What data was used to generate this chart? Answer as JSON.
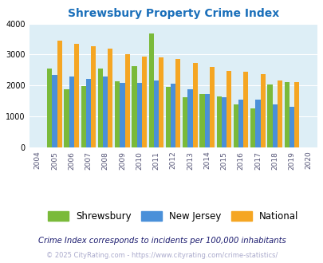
{
  "title": "Shrewsbury Property Crime Index",
  "years": [
    2004,
    2005,
    2006,
    2007,
    2008,
    2009,
    2010,
    2011,
    2012,
    2013,
    2014,
    2015,
    2016,
    2017,
    2018,
    2019,
    2020
  ],
  "shrewsbury": [
    null,
    2540,
    1880,
    1970,
    2540,
    2140,
    2630,
    3670,
    1950,
    1620,
    1720,
    1650,
    1400,
    1260,
    2030,
    2120,
    null
  ],
  "new_jersey": [
    null,
    2340,
    2280,
    2200,
    2290,
    2080,
    2080,
    2150,
    2060,
    1890,
    1710,
    1620,
    1540,
    1540,
    1400,
    1320,
    null
  ],
  "national": [
    null,
    3440,
    3340,
    3270,
    3200,
    3020,
    2940,
    2900,
    2850,
    2730,
    2590,
    2480,
    2440,
    2360,
    2170,
    2100,
    null
  ],
  "shrewsbury_color": "#7aba3a",
  "new_jersey_color": "#4a90d9",
  "national_color": "#f5a623",
  "plot_bg": "#ddeef6",
  "ylim": [
    0,
    4000
  ],
  "yticks": [
    0,
    1000,
    2000,
    3000,
    4000
  ],
  "subtitle": "Crime Index corresponds to incidents per 100,000 inhabitants",
  "footer": "© 2025 CityRating.com - https://www.cityrating.com/crime-statistics/",
  "legend_labels": [
    "Shrewsbury",
    "New Jersey",
    "National"
  ]
}
